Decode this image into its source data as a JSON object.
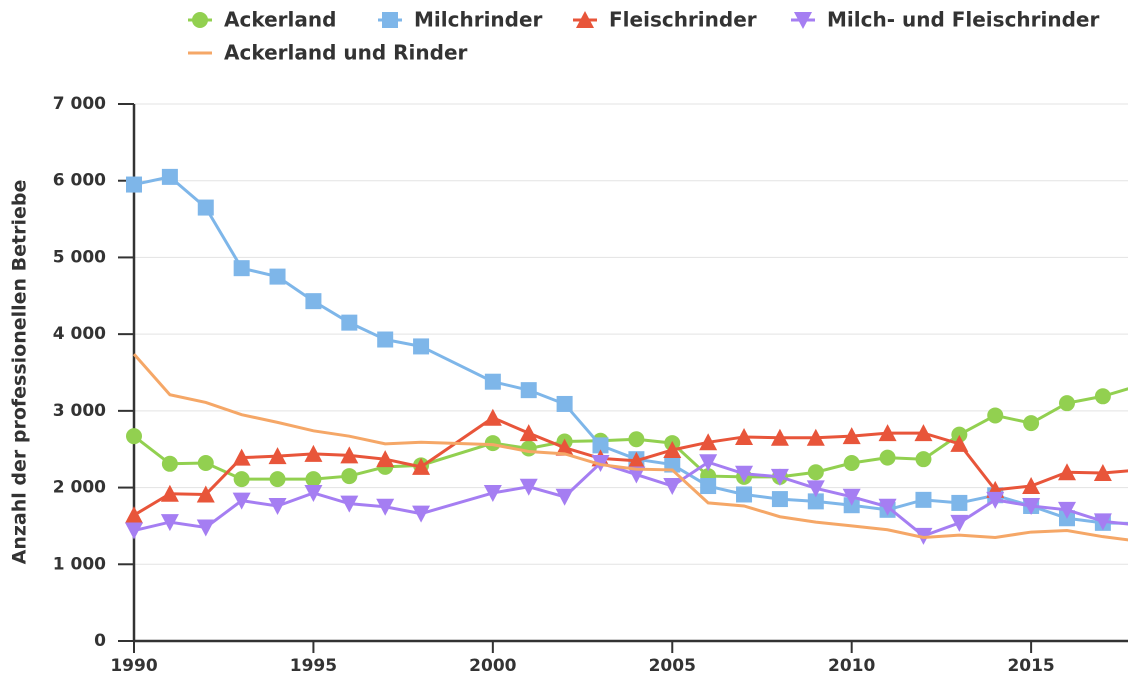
{
  "chart_data": {
    "type": "line",
    "y_label": "Anzahl der professionellen Betriebe",
    "x": [
      1990,
      1991,
      1992,
      1993,
      1994,
      1995,
      1996,
      1997,
      1998,
      2000,
      2001,
      2002,
      2003,
      2004,
      2005,
      2006,
      2007,
      2008,
      2009,
      2010,
      2011,
      2012,
      2013,
      2014,
      2015,
      2016,
      2017,
      2018
    ],
    "series": [
      {
        "name": "Ackerland",
        "color": "#92d050",
        "marker": "circle",
        "values": [
          2670,
          2310,
          2320,
          2110,
          2110,
          2110,
          2150,
          2270,
          2290,
          2580,
          2510,
          2600,
          2610,
          2630,
          2580,
          2150,
          2140,
          2140,
          2200,
          2320,
          2390,
          2370,
          2690,
          2940,
          2840,
          3100,
          3190,
          3330
        ]
      },
      {
        "name": "Milchrinder",
        "color": "#7eb6e9",
        "marker": "square",
        "values": [
          5950,
          6050,
          5650,
          4860,
          4750,
          4430,
          4150,
          3930,
          3840,
          3380,
          3270,
          3090,
          2550,
          2370,
          2300,
          2020,
          1910,
          1850,
          1820,
          1770,
          1710,
          1840,
          1800,
          1900,
          1760,
          1600,
          1540,
          1530
        ]
      },
      {
        "name": "Fleischrinder",
        "color": "#e8553a",
        "marker": "triangle-up",
        "values": [
          1640,
          1920,
          1910,
          2390,
          2410,
          2440,
          2420,
          2370,
          2270,
          2910,
          2710,
          2520,
          2380,
          2350,
          2490,
          2590,
          2660,
          2650,
          2650,
          2670,
          2710,
          2710,
          2570,
          1970,
          2020,
          2200,
          2190,
          2230
        ]
      },
      {
        "name": "Milch- und Fleischrinder",
        "color": "#a57ef2",
        "marker": "triangle-down",
        "values": [
          1440,
          1550,
          1480,
          1830,
          1760,
          1930,
          1790,
          1750,
          1660,
          1930,
          2010,
          1880,
          2320,
          2170,
          2020,
          2330,
          2180,
          2140,
          1990,
          1880,
          1750,
          1370,
          1540,
          1840,
          1760,
          1710,
          1560,
          1510
        ]
      },
      {
        "name": "Ackerland und Rinder",
        "color": "#f5a767",
        "marker": "none",
        "values": [
          3740,
          3210,
          3110,
          2950,
          2850,
          2740,
          2670,
          2570,
          2590,
          2560,
          2470,
          2440,
          2300,
          2240,
          2230,
          1800,
          1760,
          1620,
          1550,
          1500,
          1450,
          1350,
          1380,
          1350,
          1420,
          1440,
          1360,
          1300
        ]
      }
    ],
    "xlim": [
      1990,
      2017.7
    ],
    "xticks": [
      1990,
      1995,
      2000,
      2005,
      2010,
      2015
    ],
    "ylim": [
      0,
      7000
    ],
    "yticks": [
      0,
      {
        "value": 1000,
        "label": "1 000"
      },
      {
        "value": 2000,
        "label": "2 000"
      },
      {
        "value": 3000,
        "label": "3 000"
      },
      {
        "value": 4000,
        "label": "4 000"
      },
      {
        "value": 5000,
        "label": "5 000"
      },
      {
        "value": 6000,
        "label": "6 000"
      },
      {
        "value": 7000,
        "label": "7 000"
      }
    ],
    "grid": true,
    "legend": "top"
  }
}
